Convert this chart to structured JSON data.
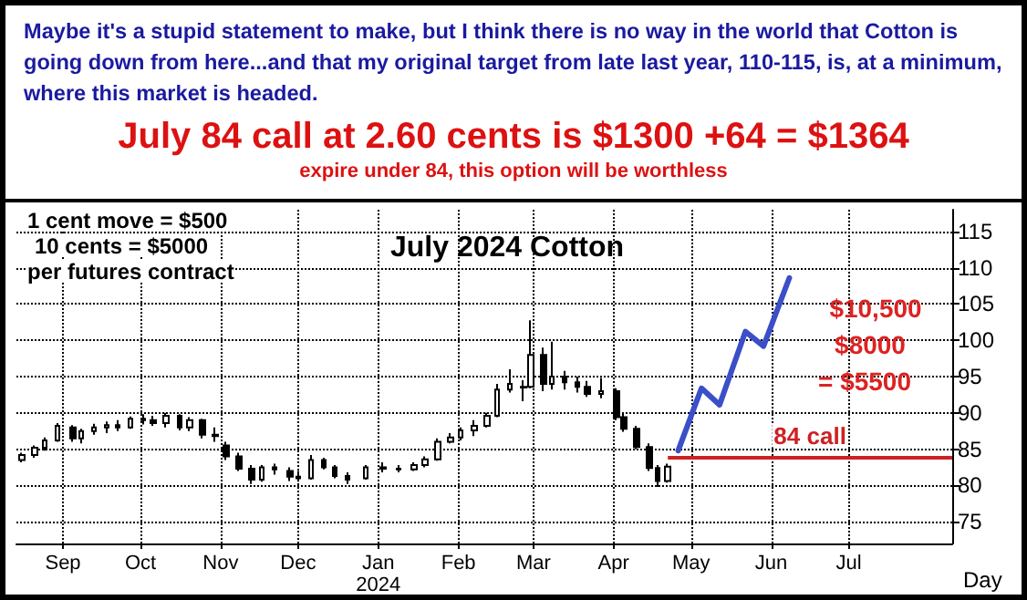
{
  "chart_data": {
    "type": "candlestick",
    "title": "July 2024 Cotton",
    "xlabel": "Day",
    "annotations": [
      "Maybe it's a stupid statement to make, but I think there is no way in the world that Cotton is going down from here...and that my original target from late last year, 110-115, is, at a minimum, where this market is headed.",
      "July 84 call at 2.60 cents is $1300 +64 = $1364",
      "expire under 84, this option will be worthless",
      "1 cent move = $500",
      "10 cents = $5000",
      "per futures contract",
      "$10,500",
      "$8000",
      "= $5500"
    ],
    "series": [
      {
        "color": "#000000",
        "x": [
          "2023-08-16",
          "2023-08-21",
          "2023-08-25",
          "2023-08-30",
          "2023-09-05",
          "2023-09-08",
          "2023-09-13",
          "2023-09-18",
          "2023-09-22",
          "2023-09-27",
          "2023-10-02",
          "2023-10-06",
          "2023-10-11",
          "2023-10-16",
          "2023-10-20",
          "2023-10-25",
          "2023-10-30",
          "2023-11-03",
          "2023-11-08",
          "2023-11-13",
          "2023-11-17",
          "2023-11-22",
          "2023-11-28",
          "2023-12-01",
          "2023-12-06",
          "2023-12-11",
          "2023-12-15",
          "2023-12-20",
          "2023-12-27",
          "2024-01-03",
          "2024-01-09",
          "2024-01-15",
          "2024-01-19",
          "2024-01-24",
          "2024-01-29",
          "2024-02-02",
          "2024-02-07",
          "2024-02-12",
          "2024-02-16",
          "2024-02-21",
          "2024-02-26",
          "2024-02-29",
          "2024-03-05",
          "2024-03-08",
          "2024-03-13",
          "2024-03-18",
          "2024-03-22",
          "2024-03-27",
          "2024-04-02",
          "2024-04-05",
          "2024-04-10",
          "2024-04-15",
          "2024-04-18",
          "2024-04-22"
        ],
        "ohlc": [
          [
            83.5,
            84.5,
            83.2,
            84.2
          ],
          [
            84.2,
            85.5,
            83.8,
            85.2
          ],
          [
            85.2,
            86.6,
            84.8,
            86.2
          ],
          [
            86.2,
            88.6,
            86.0,
            88.2
          ],
          [
            88.0,
            88.3,
            86.0,
            86.5
          ],
          [
            86.5,
            87.8,
            85.8,
            87.5
          ],
          [
            87.5,
            88.5,
            87.0,
            88.0
          ],
          [
            88.0,
            88.8,
            87.2,
            88.3
          ],
          [
            88.3,
            89.0,
            87.5,
            88.0
          ],
          [
            88.0,
            89.5,
            87.8,
            89.2
          ],
          [
            89.2,
            89.8,
            88.4,
            89.0
          ],
          [
            89.0,
            89.6,
            88.2,
            88.6
          ],
          [
            88.6,
            90.0,
            88.0,
            89.6
          ],
          [
            89.6,
            89.8,
            87.6,
            88.0
          ],
          [
            88.0,
            89.4,
            87.5,
            89.0
          ],
          [
            89.0,
            89.2,
            86.5,
            87.0
          ],
          [
            87.0,
            88.0,
            86.0,
            86.8
          ],
          [
            85.5,
            86.0,
            83.5,
            84.0
          ],
          [
            84.0,
            84.5,
            82.0,
            82.3
          ],
          [
            82.3,
            82.8,
            80.2,
            80.8
          ],
          [
            80.8,
            82.8,
            80.5,
            82.5
          ],
          [
            82.5,
            83.0,
            81.5,
            82.2
          ],
          [
            82.0,
            82.5,
            80.6,
            81.2
          ],
          [
            81.2,
            82.0,
            80.5,
            81.0
          ],
          [
            81.0,
            84.2,
            80.8,
            83.5
          ],
          [
            83.5,
            83.8,
            82.2,
            82.5
          ],
          [
            82.5,
            82.8,
            81.0,
            81.3
          ],
          [
            81.3,
            81.8,
            80.2,
            80.8
          ],
          [
            81.0,
            82.8,
            80.8,
            82.5
          ],
          [
            82.5,
            83.2,
            81.8,
            82.3
          ],
          [
            82.3,
            82.8,
            81.8,
            82.2
          ],
          [
            82.2,
            83.2,
            82.0,
            82.8
          ],
          [
            82.8,
            84.0,
            82.5,
            83.6
          ],
          [
            83.6,
            86.5,
            83.4,
            86.0
          ],
          [
            86.0,
            87.2,
            85.8,
            86.6
          ],
          [
            86.6,
            88.0,
            86.2,
            87.6
          ],
          [
            87.6,
            89.0,
            86.8,
            88.2
          ],
          [
            88.2,
            90.0,
            88.0,
            89.6
          ],
          [
            89.6,
            94.0,
            89.4,
            93.2
          ],
          [
            93.2,
            96.0,
            92.8,
            94.0
          ],
          [
            93.5,
            94.5,
            91.6,
            93.6
          ],
          [
            93.6,
            102.75,
            93.4,
            98.0
          ],
          [
            98.0,
            99.0,
            93.0,
            94.0
          ],
          [
            94.0,
            99.8,
            93.2,
            95.0
          ],
          [
            95.0,
            95.8,
            93.2,
            94.2
          ],
          [
            94.2,
            95.0,
            92.8,
            93.6
          ],
          [
            93.6,
            94.4,
            92.2,
            92.6
          ],
          [
            92.6,
            94.8,
            92.0,
            93.0
          ],
          [
            93.0,
            93.4,
            89.0,
            89.4
          ],
          [
            89.4,
            90.0,
            87.4,
            87.8
          ],
          [
            87.8,
            88.2,
            85.0,
            85.3
          ],
          [
            85.3,
            85.8,
            82.0,
            82.4
          ],
          [
            82.4,
            82.8,
            79.8,
            80.6
          ],
          [
            80.6,
            83.0,
            80.4,
            82.6
          ]
        ]
      },
      {
        "type": "line",
        "color": "#3a4fc8",
        "x": [
          "2024-04-26",
          "2024-05-05",
          "2024-05-12",
          "2024-05-22",
          "2024-05-29",
          "2024-06-08"
        ],
        "values": [
          84.8,
          93.4,
          91.1,
          101.2,
          99.2,
          108.6
        ]
      }
    ],
    "xlim": [
      "2023-08-14",
      "2024-08-10"
    ],
    "xticks": [
      {
        "value": "2023-09-01",
        "label": "Sep"
      },
      {
        "value": "2023-10-01",
        "label": "Oct"
      },
      {
        "value": "2023-11-01",
        "label": "Nov"
      },
      {
        "value": "2023-12-01",
        "label": "Dec"
      },
      {
        "value": "2024-01-01",
        "label": "Jan\n2024"
      },
      {
        "value": "2024-02-01",
        "label": "Feb"
      },
      {
        "value": "2024-03-01",
        "label": "Mar"
      },
      {
        "value": "2024-04-01",
        "label": "Apr"
      },
      {
        "value": "2024-05-01",
        "label": "May"
      },
      {
        "value": "2024-06-01",
        "label": "Jun"
      },
      {
        "value": "2024-07-01",
        "label": "Jul"
      }
    ],
    "ylim": [
      72,
      118
    ],
    "yticks": [
      75,
      80,
      85,
      90,
      95,
      100,
      105,
      110,
      115
    ],
    "ref_lines": [
      {
        "axis": "y",
        "value": 84,
        "label": "84 call",
        "color": "#cc2222"
      }
    ],
    "grid": true,
    "marker": "none",
    "line_style": "solid"
  }
}
